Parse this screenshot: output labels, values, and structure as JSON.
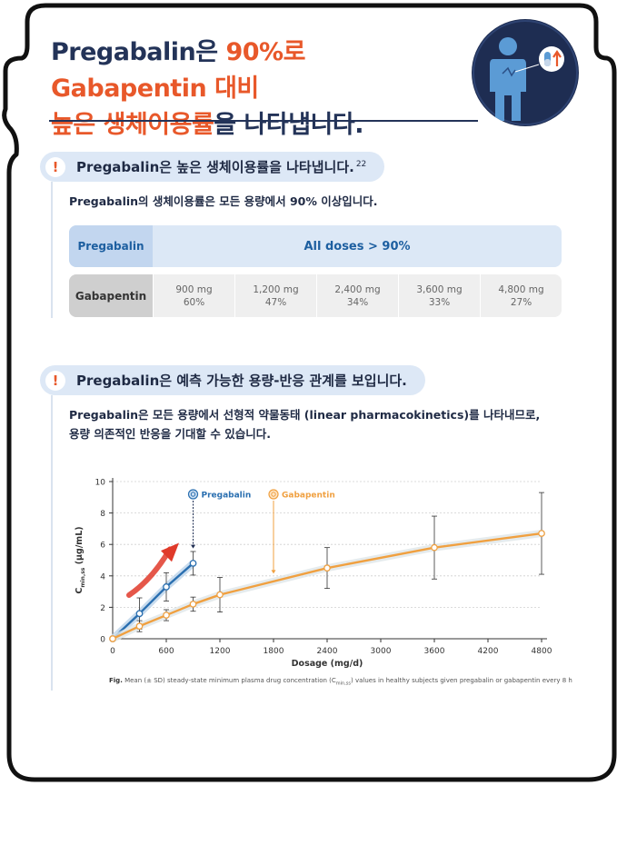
{
  "header": {
    "title_l1_a": "Pregabalin은 ",
    "title_l1_b": "90%로 Gabapentin 대비",
    "title_l2_a": "높은 생체이용률",
    "title_l2_b": "을 나타냅니다."
  },
  "hero_icon": "patient-capsule-icon",
  "section1": {
    "heading": "Pregabalin은 높은 생체이용률을 나타냅니다.",
    "ref": "22",
    "subtitle": "Pregabalin의 생체이용률은 모든 용량에서 90% 이상입니다.",
    "table": {
      "pregabalin_label": "Pregabalin",
      "pregabalin_value": "All doses > 90%",
      "gabapentin_label": "Gabapentin",
      "gabapentin_cells": [
        {
          "dose": "900 mg",
          "pct": "60%"
        },
        {
          "dose": "1,200 mg",
          "pct": "47%"
        },
        {
          "dose": "2,400 mg",
          "pct": "34%"
        },
        {
          "dose": "3,600 mg",
          "pct": "33%"
        },
        {
          "dose": "4,800 mg",
          "pct": "27%"
        }
      ]
    }
  },
  "section2": {
    "heading": "Pregabalin은 예측 가능한 용량-반응 관계를 보입니다.",
    "line1_a": "Pregabalin은 모든 용량에서 ",
    "line1_b": "선형적 약물동태 (linear pharmacokinetics)",
    "line1_c": "를 나타내므로,",
    "line2": "용량 의존적인 반응을 기대할 수 있습니다."
  },
  "chart_data": {
    "type": "line",
    "xlabel": "Dosage (mg/d)",
    "ylabel_main": "C",
    "ylabel_sub": "min,ss",
    "ylabel_unit": " (μg/mL)",
    "xlim": [
      0,
      4800
    ],
    "ylim": [
      0,
      10
    ],
    "xticks": [
      0,
      600,
      1200,
      1800,
      2400,
      3000,
      3600,
      4200,
      4800
    ],
    "yticks": [
      0,
      2,
      4,
      6,
      8,
      10
    ],
    "grid": "horizontal dotted",
    "series": [
      {
        "name": "Pregabalin",
        "color": "#2a6fb0",
        "x": [
          0,
          300,
          600,
          900
        ],
        "y": [
          0,
          1.6,
          3.3,
          4.8
        ],
        "err": [
          0,
          1.0,
          0.9,
          0.75
        ]
      },
      {
        "name": "Gabapentin",
        "color": "#f0a040",
        "x": [
          0,
          300,
          600,
          900,
          1200,
          2400,
          3600,
          4800
        ],
        "y": [
          0,
          0.8,
          1.5,
          2.2,
          2.8,
          4.5,
          5.8,
          6.7
        ],
        "err": [
          0,
          0.35,
          0.35,
          0.45,
          1.1,
          1.3,
          2.0,
          2.6
        ]
      }
    ],
    "caption_bold": "Fig.",
    "caption_a": " Mean (± SD) steady-state minimum plasma drug concentration (C",
    "caption_sub": "min,ss",
    "caption_b": ") values in healthy subjects given pregabalin or gabapentin every 8 h"
  }
}
